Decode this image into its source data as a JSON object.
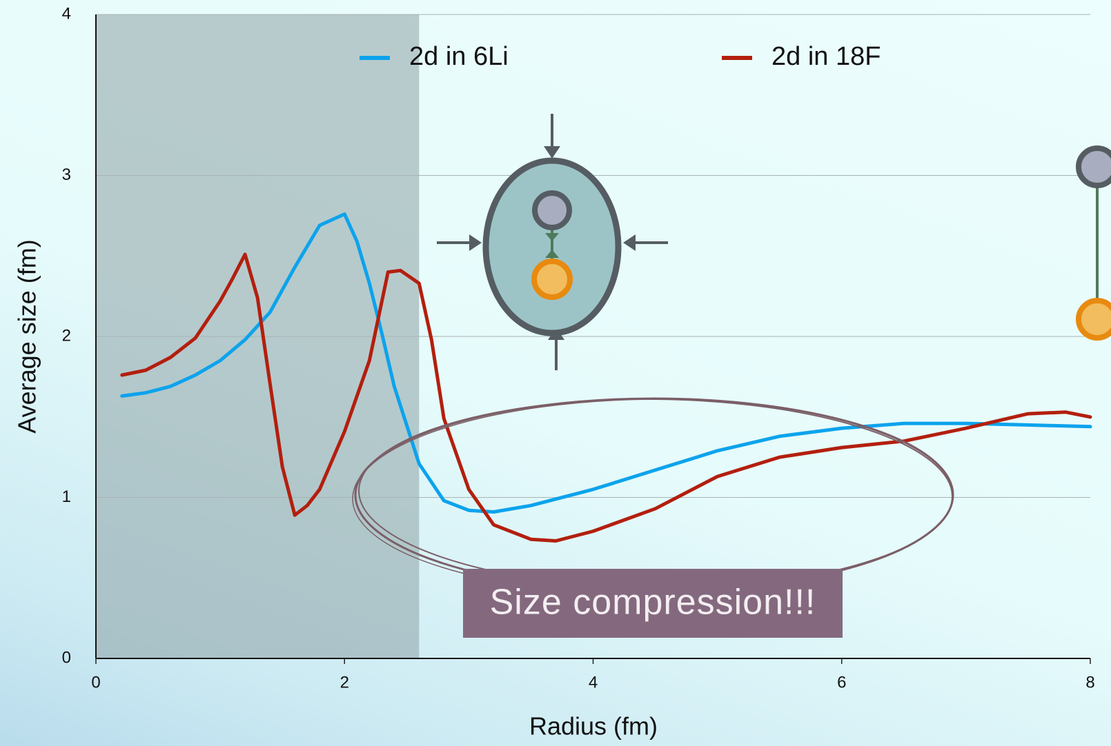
{
  "chart_data": {
    "type": "line",
    "x_label": "Radius (fm)",
    "y_label": "Average size (fm)",
    "xlim": [
      0,
      8
    ],
    "xticks": [
      0,
      2,
      4,
      6,
      8
    ],
    "ylim": [
      0,
      4
    ],
    "yticks": [
      0,
      1,
      2,
      3,
      4
    ],
    "grid": true,
    "legend": "top",
    "shaded_region": [
      0,
      2.6
    ],
    "annotation": "Size compression!!!",
    "series": [
      {
        "name": "2d in 6Li",
        "color": "#0ca3ec",
        "x": [
          0.21,
          0.4,
          0.6,
          0.8,
          1.0,
          1.2,
          1.4,
          1.6,
          1.8,
          2.0,
          2.1,
          2.2,
          2.3,
          2.4,
          2.6,
          2.8,
          3.0,
          3.2,
          3.5,
          4.0,
          4.5,
          5.0,
          5.5,
          6.0,
          6.5,
          7.0,
          7.5,
          8.0
        ],
        "values": [
          1.63,
          1.65,
          1.69,
          1.76,
          1.85,
          1.98,
          2.15,
          2.43,
          2.69,
          2.76,
          2.59,
          2.33,
          2.02,
          1.69,
          1.21,
          0.98,
          0.92,
          0.91,
          0.95,
          1.05,
          1.17,
          1.29,
          1.38,
          1.43,
          1.46,
          1.46,
          1.45,
          1.44
        ]
      },
      {
        "name": "2d in 18F",
        "color": "#b31f0e",
        "x": [
          0.21,
          0.4,
          0.6,
          0.8,
          1.0,
          1.1,
          1.2,
          1.3,
          1.4,
          1.5,
          1.6,
          1.7,
          1.8,
          2.0,
          2.2,
          2.35,
          2.45,
          2.6,
          2.7,
          2.8,
          3.0,
          3.2,
          3.5,
          3.7,
          4.0,
          4.5,
          5.0,
          5.5,
          6.0,
          6.5,
          7.0,
          7.5,
          7.8,
          8.0
        ],
        "values": [
          1.76,
          1.79,
          1.87,
          1.99,
          2.22,
          2.36,
          2.51,
          2.24,
          1.71,
          1.19,
          0.89,
          0.95,
          1.05,
          1.41,
          1.85,
          2.4,
          2.41,
          2.33,
          1.98,
          1.49,
          1.05,
          0.83,
          0.74,
          0.73,
          0.79,
          0.93,
          1.13,
          1.25,
          1.31,
          1.35,
          1.43,
          1.52,
          1.53,
          1.5
        ]
      }
    ]
  }
}
